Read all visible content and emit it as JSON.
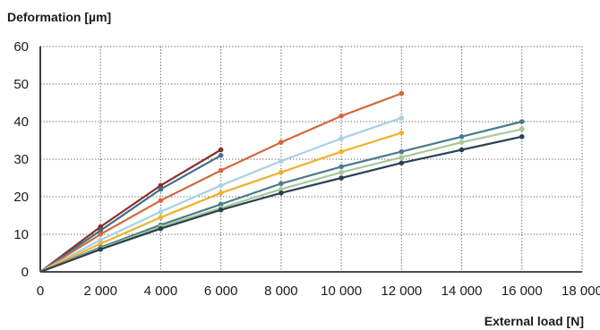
{
  "chart_data": {
    "type": "line",
    "title": "",
    "xlabel": "External load [N]",
    "ylabel": "Deformation [µm]",
    "xlim": [
      0,
      18000
    ],
    "ylim": [
      0,
      60
    ],
    "x_ticks": [
      0,
      2000,
      4000,
      6000,
      8000,
      10000,
      12000,
      14000,
      16000,
      18000
    ],
    "x_tick_labels": [
      "0",
      "2 000",
      "4 000",
      "6 000",
      "8 000",
      "10 000",
      "12 000",
      "14 000",
      "16 000",
      "18 000"
    ],
    "y_ticks": [
      0,
      10,
      20,
      30,
      40,
      50,
      60
    ],
    "y_tick_labels": [
      "0",
      "10",
      "20",
      "30",
      "40",
      "50",
      "60"
    ],
    "grid": true,
    "legend": "none",
    "series": [
      {
        "color": "#8b2f28",
        "points": [
          [
            0,
            0
          ],
          [
            2000,
            12
          ],
          [
            4000,
            23
          ],
          [
            6000,
            32.5
          ]
        ]
      },
      {
        "color": "#3e6e8c",
        "points": [
          [
            0,
            0
          ],
          [
            2000,
            11
          ],
          [
            4000,
            22
          ],
          [
            6000,
            31
          ]
        ]
      },
      {
        "color": "#d2683c",
        "points": [
          [
            0,
            0
          ],
          [
            2000,
            10
          ],
          [
            4000,
            19
          ],
          [
            6000,
            27
          ],
          [
            8000,
            34.5
          ],
          [
            10000,
            41.5
          ],
          [
            12000,
            47.5
          ]
        ]
      },
      {
        "color": "#a8d0e6",
        "points": [
          [
            0,
            0
          ],
          [
            2000,
            8.5
          ],
          [
            4000,
            16
          ],
          [
            6000,
            23
          ],
          [
            8000,
            29.5
          ],
          [
            10000,
            35.5
          ],
          [
            12000,
            41
          ]
        ]
      },
      {
        "color": "#f0b22a",
        "points": [
          [
            0,
            0
          ],
          [
            2000,
            7.5
          ],
          [
            4000,
            14.5
          ],
          [
            6000,
            21
          ],
          [
            8000,
            26.5
          ],
          [
            10000,
            32
          ],
          [
            12000,
            37
          ]
        ]
      },
      {
        "color": "#4a7a8c",
        "points": [
          [
            0,
            0
          ],
          [
            2000,
            6.5
          ],
          [
            4000,
            12.5
          ],
          [
            6000,
            18
          ],
          [
            8000,
            23.5
          ],
          [
            10000,
            28
          ],
          [
            12000,
            32
          ],
          [
            14000,
            36
          ],
          [
            16000,
            40
          ]
        ]
      },
      {
        "color": "#a8c89a",
        "points": [
          [
            0,
            0
          ],
          [
            2000,
            6.2
          ],
          [
            4000,
            12
          ],
          [
            6000,
            17
          ],
          [
            8000,
            22
          ],
          [
            10000,
            26.5
          ],
          [
            12000,
            30.5
          ],
          [
            14000,
            34.5
          ],
          [
            16000,
            38
          ]
        ]
      },
      {
        "color": "#2a4050",
        "points": [
          [
            0,
            0
          ],
          [
            2000,
            6
          ],
          [
            4000,
            11.5
          ],
          [
            6000,
            16.5
          ],
          [
            8000,
            21
          ],
          [
            10000,
            25
          ],
          [
            12000,
            29
          ],
          [
            14000,
            32.5
          ],
          [
            16000,
            36
          ]
        ]
      }
    ]
  }
}
